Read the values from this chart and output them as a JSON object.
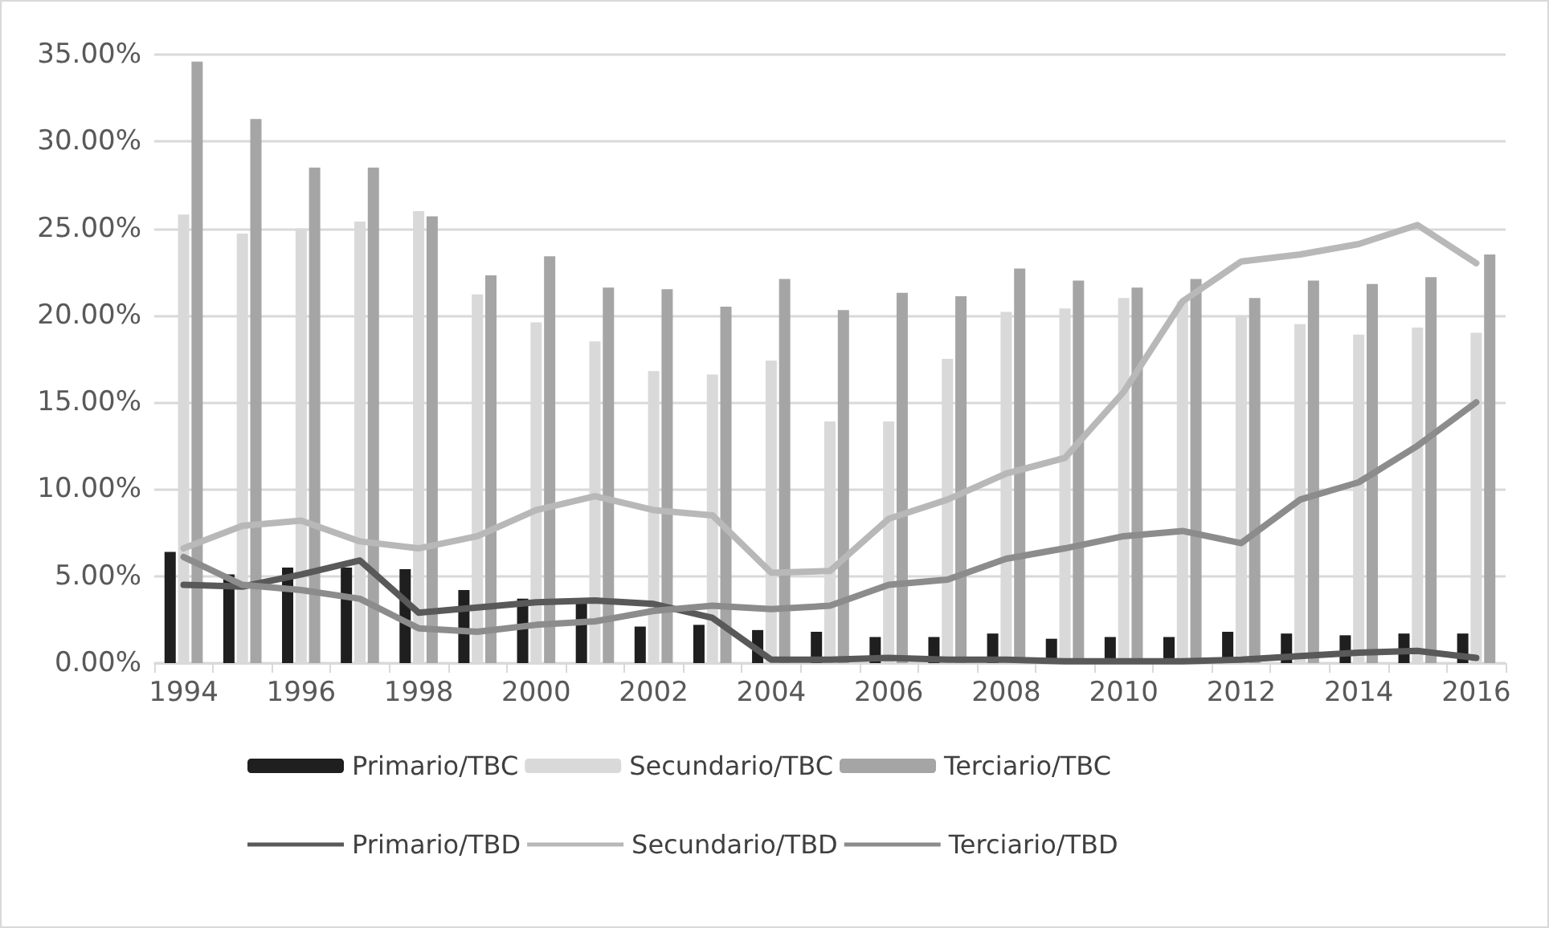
{
  "chart_data": {
    "type": "bar",
    "categories": [
      "1994",
      null,
      "1996",
      null,
      "1998",
      null,
      "2000",
      null,
      "2002",
      null,
      "2004",
      null,
      "2006",
      null,
      "2008",
      null,
      "2010",
      null,
      "2012",
      null,
      "2014",
      null,
      "2016"
    ],
    "series": [
      {
        "name": "Primario/TBC",
        "color": "#1f1f1f",
        "values": [
          6.4,
          5.1,
          5.5,
          5.5,
          5.4,
          4.2,
          3.7,
          3.6,
          2.1,
          2.2,
          1.9,
          1.8,
          1.5,
          1.5,
          1.7,
          1.4,
          1.5,
          1.5,
          1.8,
          1.7,
          1.6,
          1.7,
          1.7
        ]
      },
      {
        "name": "Secundario/TBC",
        "color": "#d9d9d9",
        "values": [
          25.8,
          24.7,
          25.0,
          25.4,
          26.0,
          21.2,
          19.6,
          18.5,
          16.8,
          16.6,
          17.4,
          13.9,
          13.9,
          17.5,
          20.2,
          20.4,
          21.0,
          20.8,
          20.0,
          19.5,
          18.9,
          19.3,
          19.0
        ]
      },
      {
        "name": "Terciario/TBC",
        "color": "#a5a5a5",
        "values": [
          34.6,
          31.3,
          28.5,
          28.5,
          25.7,
          22.3,
          23.4,
          21.6,
          21.5,
          20.5,
          22.1,
          20.3,
          21.3,
          21.1,
          22.7,
          22.0,
          21.6,
          22.1,
          21.0,
          22.0,
          21.8,
          22.2,
          23.5
        ]
      },
      {
        "name": "Primario/TBD",
        "type": "line",
        "color": "#595959",
        "values": [
          4.5,
          4.4,
          5.1,
          5.9,
          2.9,
          3.2,
          3.5,
          3.6,
          3.4,
          2.6,
          0.2,
          0.2,
          0.3,
          0.2,
          0.2,
          0.1,
          0.1,
          0.1,
          0.2,
          0.4,
          0.6,
          0.7,
          0.3
        ]
      },
      {
        "name": "Secundario/TBD",
        "type": "line",
        "color": "#b8b8b8",
        "values": [
          6.6,
          7.9,
          8.2,
          7.0,
          6.6,
          7.3,
          8.8,
          9.6,
          8.8,
          8.5,
          5.2,
          5.3,
          8.3,
          9.4,
          10.9,
          11.8,
          15.6,
          20.8,
          23.1,
          23.5,
          24.1,
          25.2,
          23.0
        ]
      },
      {
        "name": "Terciario/TBD",
        "type": "line",
        "color": "#8c8c8c",
        "values": [
          6.1,
          4.5,
          4.2,
          3.7,
          2.0,
          1.8,
          2.2,
          2.4,
          3.0,
          3.3,
          3.1,
          3.3,
          4.5,
          4.8,
          6.0,
          6.6,
          7.3,
          7.6,
          6.9,
          9.4,
          10.4,
          12.5,
          15.0
        ]
      }
    ],
    "ylim": [
      0,
      35
    ],
    "yticks": [
      {
        "value": 0,
        "label": "0.00%"
      },
      {
        "value": 5,
        "label": "5.00%"
      },
      {
        "value": 10,
        "label": "10.00%"
      },
      {
        "value": 15,
        "label": "15.00%"
      },
      {
        "value": 20,
        "label": "20.00%"
      },
      {
        "value": 25,
        "label": "25.00%"
      },
      {
        "value": 30,
        "label": "30.00%"
      },
      {
        "value": 35,
        "label": "35.00%"
      }
    ],
    "grid": "y",
    "legend": "bottom",
    "marker": "none",
    "line_style": "solid"
  }
}
